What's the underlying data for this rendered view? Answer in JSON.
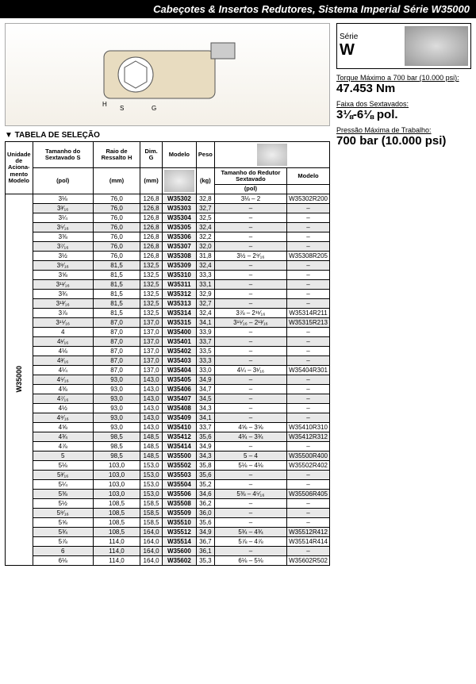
{
  "header": {
    "title": "Cabeçotes & Insertos Redutores, Sistema Imperial Série W35000"
  },
  "series": {
    "label": "Série",
    "name": "W"
  },
  "specs": {
    "torque": {
      "label": "Torque Máximo a 700 bar (10.000 psi):",
      "value": "47.453 Nm"
    },
    "faixa": {
      "label": "Faixa dos Sextavados:",
      "value": "3⅛-6⅛ pol."
    },
    "pressao": {
      "label": "Pressão Máxima de Trabalho:",
      "value": "700 bar (10.000 psi)"
    }
  },
  "sectionLabel": "▼ TABELA DE SELEÇÃO",
  "headers": {
    "unit": "Unidade de Aciona-mento Modelo",
    "hex": "Tamanho do Sextavado S",
    "raio": "Raio de Ressalto H",
    "dim": "Dim. G",
    "modelo": "Modelo",
    "peso": "Peso",
    "redHex": "Tamanho do Redutor Sextavado",
    "redModel": "Modelo",
    "pol": "(pol)",
    "mm": "(mm)",
    "kg": "(kg)"
  },
  "unitModel": "W35000",
  "rows": [
    {
      "s": "3⅛",
      "h": "76,0",
      "g": "126,8",
      "m": "W35302",
      "p": "32,8",
      "rs": "3⅛ – 2",
      "rm": "W35302R200",
      "sh": 0
    },
    {
      "s": "3³⁄₁₆",
      "h": "76,0",
      "g": "126,8",
      "m": "W35303",
      "p": "32,7",
      "rs": "–",
      "rm": "–",
      "sh": 1
    },
    {
      "s": "3¼",
      "h": "76,0",
      "g": "126,8",
      "m": "W35304",
      "p": "32,5",
      "rs": "–",
      "rm": "–",
      "sh": 0
    },
    {
      "s": "3⁵⁄₁₆",
      "h": "76,0",
      "g": "126,8",
      "m": "W35305",
      "p": "32,4",
      "rs": "–",
      "rm": "–",
      "sh": 1
    },
    {
      "s": "3⅜",
      "h": "76,0",
      "g": "126,8",
      "m": "W35306",
      "p": "32,2",
      "rs": "–",
      "rm": "–",
      "sh": 0
    },
    {
      "s": "3⁷⁄₁₆",
      "h": "76,0",
      "g": "126,8",
      "m": "W35307",
      "p": "32,0",
      "rs": "–",
      "rm": "–",
      "sh": 1
    },
    {
      "s": "3½",
      "h": "76,0",
      "g": "126,8",
      "m": "W35308",
      "p": "31,8",
      "rs": "3½ – 2⁹⁄₁₆",
      "rm": "W35308R205",
      "sh": 0
    },
    {
      "s": "3⁹⁄₁₆",
      "h": "81,5",
      "g": "132,5",
      "m": "W35309",
      "p": "32,4",
      "rs": "–",
      "rm": "–",
      "sh": 1
    },
    {
      "s": "3⅝",
      "h": "81,5",
      "g": "132,5",
      "m": "W35310",
      "p": "33,3",
      "rs": "–",
      "rm": "–",
      "sh": 0
    },
    {
      "s": "3¹¹⁄₁₆",
      "h": "81,5",
      "g": "132,5",
      "m": "W35311",
      "p": "33,1",
      "rs": "–",
      "rm": "–",
      "sh": 1
    },
    {
      "s": "3¾",
      "h": "81,5",
      "g": "132,5",
      "m": "W35312",
      "p": "32,9",
      "rs": "–",
      "rm": "–",
      "sh": 0
    },
    {
      "s": "3¹³⁄₁₆",
      "h": "81,5",
      "g": "132,5",
      "m": "W35313",
      "p": "32,7",
      "rs": "–",
      "rm": "–",
      "sh": 1
    },
    {
      "s": "3⅞",
      "h": "81,5",
      "g": "132,5",
      "m": "W35314",
      "p": "32,4",
      "rs": "3⅞ – 2¹¹⁄₁₆",
      "rm": "W35314R211",
      "sh": 0
    },
    {
      "s": "3¹⁵⁄₁₆",
      "h": "87,0",
      "g": "137,0",
      "m": "W35315",
      "p": "34,1",
      "rs": "3¹⁵⁄₁₆ – 2¹³⁄₁₆",
      "rm": "W35315R213",
      "sh": 1
    },
    {
      "s": "4",
      "h": "87,0",
      "g": "137,0",
      "m": "W35400",
      "p": "33,9",
      "rs": "–",
      "rm": "–",
      "sh": 0
    },
    {
      "s": "4¹⁄₁₆",
      "h": "87,0",
      "g": "137,0",
      "m": "W35401",
      "p": "33,7",
      "rs": "–",
      "rm": "–",
      "sh": 1
    },
    {
      "s": "4⅛",
      "h": "87,0",
      "g": "137,0",
      "m": "W35402",
      "p": "33,5",
      "rs": "–",
      "rm": "–",
      "sh": 0
    },
    {
      "s": "4³⁄₁₆",
      "h": "87,0",
      "g": "137,0",
      "m": "W35403",
      "p": "33,3",
      "rs": "–",
      "rm": "–",
      "sh": 1
    },
    {
      "s": "4¼",
      "h": "87,0",
      "g": "137,0",
      "m": "W35404",
      "p": "33,0",
      "rs": "4¼ – 3¹⁄₁₆",
      "rm": "W35404R301",
      "sh": 0
    },
    {
      "s": "4⁵⁄₁₆",
      "h": "93,0",
      "g": "143,0",
      "m": "W35405",
      "p": "34,9",
      "rs": "–",
      "rm": "–",
      "sh": 1
    },
    {
      "s": "4⅜",
      "h": "93,0",
      "g": "143,0",
      "m": "W35406",
      "p": "34,7",
      "rs": "–",
      "rm": "–",
      "sh": 0
    },
    {
      "s": "4⁷⁄₁₆",
      "h": "93,0",
      "g": "143,0",
      "m": "W35407",
      "p": "34,5",
      "rs": "–",
      "rm": "–",
      "sh": 1
    },
    {
      "s": "4½",
      "h": "93,0",
      "g": "143,0",
      "m": "W35408",
      "p": "34,3",
      "rs": "–",
      "rm": "–",
      "sh": 0
    },
    {
      "s": "4⁹⁄₁₆",
      "h": "93,0",
      "g": "143,0",
      "m": "W35409",
      "p": "34,1",
      "rs": "–",
      "rm": "–",
      "sh": 1
    },
    {
      "s": "4⅝",
      "h": "93,0",
      "g": "143,0",
      "m": "W35410",
      "p": "33,7",
      "rs": "4⅝ – 3⅝",
      "rm": "W35410R310",
      "sh": 0
    },
    {
      "s": "4¾",
      "h": "98,5",
      "g": "148,5",
      "m": "W35412",
      "p": "35,6",
      "rs": "4¾ – 3¾",
      "rm": "W35412R312",
      "sh": 1
    },
    {
      "s": "4⅞",
      "h": "98,5",
      "g": "148,5",
      "m": "W35414",
      "p": "34,9",
      "rs": "–",
      "rm": "–",
      "sh": 0
    },
    {
      "s": "5",
      "h": "98,5",
      "g": "148,5",
      "m": "W35500",
      "p": "34,3",
      "rs": "5 – 4",
      "rm": "W35500R400",
      "sh": 1
    },
    {
      "s": "5⅛",
      "h": "103,0",
      "g": "153,0",
      "m": "W35502",
      "p": "35,8",
      "rs": "5⅛ – 4⅛",
      "rm": "W35502R402",
      "sh": 0
    },
    {
      "s": "5³⁄₁₆",
      "h": "103,0",
      "g": "153,0",
      "m": "W35503",
      "p": "35,6",
      "rs": "–",
      "rm": "–",
      "sh": 1
    },
    {
      "s": "5¼",
      "h": "103,0",
      "g": "153,0",
      "m": "W35504",
      "p": "35,2",
      "rs": "–",
      "rm": "–",
      "sh": 0
    },
    {
      "s": "5⅜",
      "h": "103,0",
      "g": "153,0",
      "m": "W35506",
      "p": "34,6",
      "rs": "5⅜ – 4⁵⁄₁₆",
      "rm": "W35506R405",
      "sh": 1
    },
    {
      "s": "5½",
      "h": "108,5",
      "g": "158,5",
      "m": "W35508",
      "p": "36,2",
      "rs": "–",
      "rm": "–",
      "sh": 0
    },
    {
      "s": "5⁹⁄₁₆",
      "h": "108,5",
      "g": "158,5",
      "m": "W35509",
      "p": "36,0",
      "rs": "–",
      "rm": "–",
      "sh": 1
    },
    {
      "s": "5⅝",
      "h": "108,5",
      "g": "158,5",
      "m": "W35510",
      "p": "35,6",
      "rs": "–",
      "rm": "–",
      "sh": 0
    },
    {
      "s": "5¾",
      "h": "108,5",
      "g": "164,0",
      "m": "W35512",
      "p": "34,9",
      "rs": "5¾ – 4¾",
      "rm": "W35512R412",
      "sh": 1
    },
    {
      "s": "5⅞",
      "h": "114,0",
      "g": "164,0",
      "m": "W35514",
      "p": "36,7",
      "rs": "5⅞ – 4⅞",
      "rm": "W35514R414",
      "sh": 0
    },
    {
      "s": "6",
      "h": "114,0",
      "g": "164,0",
      "m": "W35600",
      "p": "36,1",
      "rs": "–",
      "rm": "–",
      "sh": 1
    },
    {
      "s": "6⅛",
      "h": "114,0",
      "g": "164,0",
      "m": "W35602",
      "p": "35,3",
      "rs": "6⅛ – 5⅛",
      "rm": "W35602R502",
      "sh": 0
    }
  ]
}
